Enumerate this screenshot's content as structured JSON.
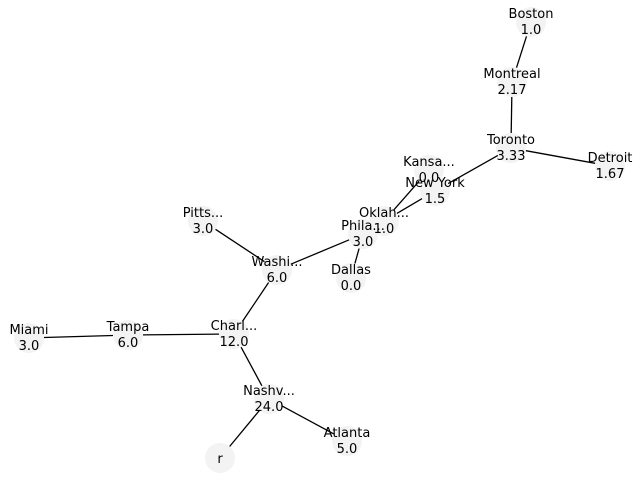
{
  "graph": {
    "nodes": [
      {
        "id": "boston",
        "label": "Boston",
        "value": "1.0"
      },
      {
        "id": "montreal",
        "label": "Montreal",
        "value": "2.17"
      },
      {
        "id": "toronto",
        "label": "Toronto",
        "value": "3.33"
      },
      {
        "id": "detroit",
        "label": "Detroit",
        "value": "1.67"
      },
      {
        "id": "kansas",
        "label": "Kansa...",
        "value": "0.0"
      },
      {
        "id": "newyork",
        "label": "New York",
        "value": "1.5"
      },
      {
        "id": "oklah",
        "label": "Oklah...",
        "value": "1.0"
      },
      {
        "id": "phila",
        "label": "Phila...",
        "value": "3.0"
      },
      {
        "id": "dallas",
        "label": "Dallas",
        "value": "0.0"
      },
      {
        "id": "pitts",
        "label": "Pitts...",
        "value": "3.0"
      },
      {
        "id": "washi",
        "label": "Washi...",
        "value": "6.0"
      },
      {
        "id": "charl",
        "label": "Charl...",
        "value": "12.0"
      },
      {
        "id": "tampa",
        "label": "Tampa",
        "value": "6.0"
      },
      {
        "id": "miami",
        "label": "Miami",
        "value": "3.0"
      },
      {
        "id": "nashv",
        "label": "Nashv...",
        "value": "24.0"
      },
      {
        "id": "atlanta",
        "label": "Atlanta",
        "value": "5.0"
      },
      {
        "id": "r",
        "label": "r",
        "value": ""
      }
    ],
    "edges": [
      [
        "boston",
        "montreal"
      ],
      [
        "montreal",
        "toronto"
      ],
      [
        "toronto",
        "detroit"
      ],
      [
        "toronto",
        "newyork"
      ],
      [
        "newyork",
        "oklah"
      ],
      [
        "kansas",
        "oklah"
      ],
      [
        "oklah",
        "phila"
      ],
      [
        "phila",
        "dallas"
      ],
      [
        "phila",
        "washi"
      ],
      [
        "pitts",
        "washi"
      ],
      [
        "washi",
        "charl"
      ],
      [
        "charl",
        "tampa"
      ],
      [
        "tampa",
        "miami"
      ],
      [
        "charl",
        "nashv"
      ],
      [
        "nashv",
        "atlanta"
      ],
      [
        "nashv",
        "r"
      ]
    ]
  }
}
